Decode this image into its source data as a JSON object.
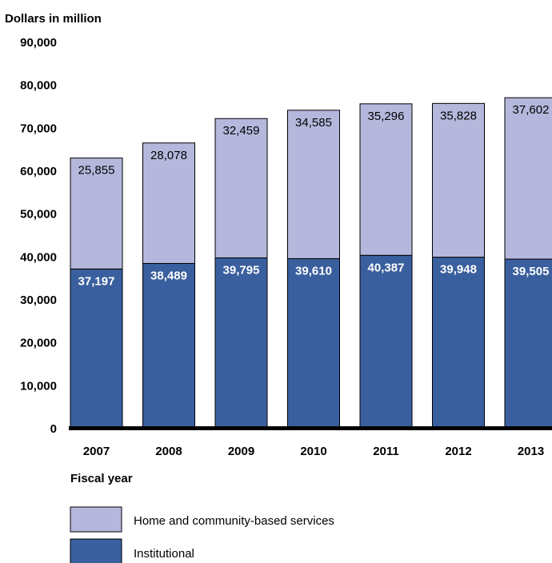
{
  "chart_data": {
    "type": "bar",
    "stacked": true,
    "ylabel": "Dollars in million",
    "xlabel": "Fiscal year",
    "ylim": [
      0,
      90000
    ],
    "yticks": [
      "0",
      "10,000",
      "20,000",
      "30,000",
      "40,000",
      "50,000",
      "60,000",
      "70,000",
      "80,000",
      "90,000"
    ],
    "categories": [
      "2007",
      "2008",
      "2009",
      "2010",
      "2011",
      "2012",
      "2013"
    ],
    "series": [
      {
        "name": "Institutional",
        "color": "#3a5f9e",
        "values": [
          37197,
          38489,
          39795,
          39610,
          40387,
          39948,
          39505
        ],
        "labels": [
          "37,197",
          "38,489",
          "39,795",
          "39,610",
          "40,387",
          "39,948",
          "39,505"
        ]
      },
      {
        "name": "Home and community-based services",
        "color": "#b5b8dc",
        "values": [
          25855,
          28078,
          32459,
          34585,
          35296,
          35828,
          37602
        ],
        "labels": [
          "25,855",
          "28,078",
          "32,459",
          "34,585",
          "35,296",
          "35,828",
          "37,602"
        ]
      }
    ],
    "legend": {
      "position": "bottom-left",
      "items": [
        "Home and community-based services",
        "Institutional"
      ]
    }
  }
}
